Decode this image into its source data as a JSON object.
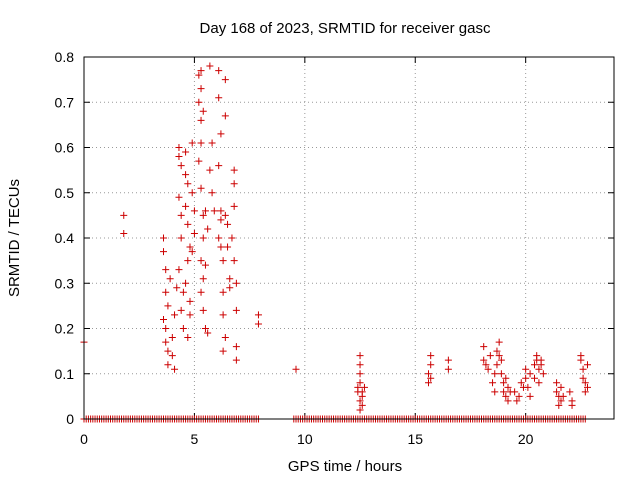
{
  "chart_data": {
    "type": "scatter",
    "title": "Day 168 of 2023, SRMTID for receiver gasc",
    "xlabel": "GPS time / hours",
    "ylabel": "SRMTID / TECUs",
    "xlim": [
      0,
      24
    ],
    "ylim": [
      0,
      0.8
    ],
    "xticks": [
      0,
      5,
      10,
      15,
      20
    ],
    "xtick_labels": [
      "0",
      "5",
      "10",
      "15",
      "20"
    ],
    "yticks": [
      0,
      0.1,
      0.2,
      0.3,
      0.4,
      0.5,
      0.6,
      0.7,
      0.8
    ],
    "ytick_labels": [
      "0",
      "0.1",
      "0.2",
      "0.3",
      "0.4",
      "0.5",
      "0.6",
      "0.7",
      "0.8"
    ],
    "grid": true,
    "marker": "+",
    "color": "#cc0000",
    "zero_baseline_points": {
      "x_ranges": [
        [
          0.0,
          7.9
        ],
        [
          9.5,
          22.7
        ]
      ],
      "x_step": 0.1,
      "y": 0
    },
    "series": [
      {
        "name": "SRMTID",
        "points": [
          [
            0.0,
            0.17
          ],
          [
            1.8,
            0.45
          ],
          [
            1.8,
            0.41
          ],
          [
            3.6,
            0.4
          ],
          [
            3.6,
            0.37
          ],
          [
            3.7,
            0.33
          ],
          [
            3.7,
            0.28
          ],
          [
            3.6,
            0.22
          ],
          [
            3.7,
            0.2
          ],
          [
            3.7,
            0.17
          ],
          [
            3.8,
            0.15
          ],
          [
            3.8,
            0.12
          ],
          [
            3.9,
            0.31
          ],
          [
            3.8,
            0.25
          ],
          [
            4.0,
            0.14
          ],
          [
            4.1,
            0.11
          ],
          [
            4.0,
            0.18
          ],
          [
            4.1,
            0.23
          ],
          [
            4.2,
            0.29
          ],
          [
            4.3,
            0.6
          ],
          [
            4.3,
            0.58
          ],
          [
            4.4,
            0.56
          ],
          [
            4.3,
            0.49
          ],
          [
            4.4,
            0.45
          ],
          [
            4.4,
            0.4
          ],
          [
            4.3,
            0.33
          ],
          [
            4.5,
            0.28
          ],
          [
            4.4,
            0.24
          ],
          [
            4.5,
            0.2
          ],
          [
            4.6,
            0.59
          ],
          [
            4.6,
            0.54
          ],
          [
            4.7,
            0.52
          ],
          [
            4.6,
            0.47
          ],
          [
            4.7,
            0.43
          ],
          [
            4.8,
            0.38
          ],
          [
            4.7,
            0.35
          ],
          [
            4.6,
            0.3
          ],
          [
            4.8,
            0.26
          ],
          [
            4.8,
            0.23
          ],
          [
            4.7,
            0.18
          ],
          [
            4.9,
            0.61
          ],
          [
            4.9,
            0.5
          ],
          [
            5.0,
            0.46
          ],
          [
            5.0,
            0.41
          ],
          [
            4.9,
            0.37
          ],
          [
            5.2,
            0.76
          ],
          [
            5.3,
            0.77
          ],
          [
            5.3,
            0.73
          ],
          [
            5.2,
            0.7
          ],
          [
            5.4,
            0.68
          ],
          [
            5.3,
            0.66
          ],
          [
            5.3,
            0.61
          ],
          [
            5.2,
            0.57
          ],
          [
            5.3,
            0.51
          ],
          [
            5.4,
            0.45
          ],
          [
            5.4,
            0.4
          ],
          [
            5.3,
            0.35
          ],
          [
            5.4,
            0.31
          ],
          [
            5.3,
            0.28
          ],
          [
            5.4,
            0.24
          ],
          [
            5.5,
            0.2
          ],
          [
            5.6,
            0.19
          ],
          [
            5.5,
            0.34
          ],
          [
            5.6,
            0.42
          ],
          [
            5.5,
            0.46
          ],
          [
            5.7,
            0.78
          ],
          [
            5.8,
            0.61
          ],
          [
            5.7,
            0.55
          ],
          [
            5.8,
            0.5
          ],
          [
            5.9,
            0.46
          ],
          [
            6.1,
            0.77
          ],
          [
            6.1,
            0.71
          ],
          [
            6.2,
            0.63
          ],
          [
            6.1,
            0.56
          ],
          [
            6.2,
            0.46
          ],
          [
            6.2,
            0.44
          ],
          [
            6.1,
            0.4
          ],
          [
            6.2,
            0.38
          ],
          [
            6.3,
            0.35
          ],
          [
            6.3,
            0.28
          ],
          [
            6.3,
            0.23
          ],
          [
            6.4,
            0.18
          ],
          [
            6.3,
            0.15
          ],
          [
            6.4,
            0.75
          ],
          [
            6.4,
            0.67
          ],
          [
            6.4,
            0.45
          ],
          [
            6.5,
            0.43
          ],
          [
            6.5,
            0.38
          ],
          [
            6.6,
            0.31
          ],
          [
            6.6,
            0.29
          ],
          [
            6.8,
            0.55
          ],
          [
            6.8,
            0.52
          ],
          [
            6.8,
            0.47
          ],
          [
            6.7,
            0.4
          ],
          [
            6.8,
            0.35
          ],
          [
            6.9,
            0.3
          ],
          [
            6.9,
            0.24
          ],
          [
            6.9,
            0.16
          ],
          [
            6.9,
            0.13
          ],
          [
            7.9,
            0.23
          ],
          [
            7.9,
            0.21
          ],
          [
            9.6,
            0.11
          ],
          [
            12.4,
            0.07
          ],
          [
            12.5,
            0.14
          ],
          [
            12.5,
            0.12
          ],
          [
            12.5,
            0.1
          ],
          [
            12.5,
            0.08
          ],
          [
            12.6,
            0.06
          ],
          [
            12.6,
            0.05
          ],
          [
            12.6,
            0.03
          ],
          [
            12.5,
            0.04
          ],
          [
            12.7,
            0.07
          ],
          [
            12.4,
            0.06
          ],
          [
            12.5,
            0.02
          ],
          [
            15.7,
            0.14
          ],
          [
            15.7,
            0.12
          ],
          [
            15.6,
            0.1
          ],
          [
            15.6,
            0.08
          ],
          [
            15.7,
            0.09
          ],
          [
            16.5,
            0.13
          ],
          [
            16.5,
            0.11
          ],
          [
            18.1,
            0.16
          ],
          [
            18.1,
            0.13
          ],
          [
            18.2,
            0.12
          ],
          [
            18.3,
            0.11
          ],
          [
            18.4,
            0.14
          ],
          [
            18.5,
            0.08
          ],
          [
            18.6,
            0.06
          ],
          [
            18.6,
            0.1
          ],
          [
            18.7,
            0.12
          ],
          [
            18.7,
            0.15
          ],
          [
            18.8,
            0.17
          ],
          [
            18.8,
            0.14
          ],
          [
            18.9,
            0.13
          ],
          [
            18.9,
            0.1
          ],
          [
            19.0,
            0.08
          ],
          [
            19.0,
            0.06
          ],
          [
            19.1,
            0.09
          ],
          [
            19.1,
            0.05
          ],
          [
            19.2,
            0.07
          ],
          [
            19.2,
            0.04
          ],
          [
            19.3,
            0.06
          ],
          [
            19.5,
            0.06
          ],
          [
            19.6,
            0.04
          ],
          [
            19.7,
            0.05
          ],
          [
            19.8,
            0.08
          ],
          [
            19.9,
            0.07
          ],
          [
            20.0,
            0.11
          ],
          [
            20.0,
            0.09
          ],
          [
            20.1,
            0.07
          ],
          [
            20.2,
            0.05
          ],
          [
            20.2,
            0.1
          ],
          [
            20.4,
            0.12
          ],
          [
            20.4,
            0.09
          ],
          [
            20.5,
            0.14
          ],
          [
            20.5,
            0.13
          ],
          [
            20.6,
            0.11
          ],
          [
            20.6,
            0.08
          ],
          [
            20.7,
            0.13
          ],
          [
            20.7,
            0.12
          ],
          [
            20.8,
            0.1
          ],
          [
            21.4,
            0.08
          ],
          [
            21.4,
            0.06
          ],
          [
            21.5,
            0.05
          ],
          [
            21.5,
            0.03
          ],
          [
            21.6,
            0.07
          ],
          [
            21.6,
            0.04
          ],
          [
            21.7,
            0.05
          ],
          [
            22.0,
            0.06
          ],
          [
            22.1,
            0.04
          ],
          [
            22.1,
            0.03
          ],
          [
            22.5,
            0.14
          ],
          [
            22.5,
            0.13
          ],
          [
            22.6,
            0.11
          ],
          [
            22.6,
            0.09
          ],
          [
            22.7,
            0.08
          ],
          [
            22.7,
            0.06
          ],
          [
            22.8,
            0.07
          ],
          [
            22.8,
            0.12
          ]
        ]
      }
    ]
  }
}
